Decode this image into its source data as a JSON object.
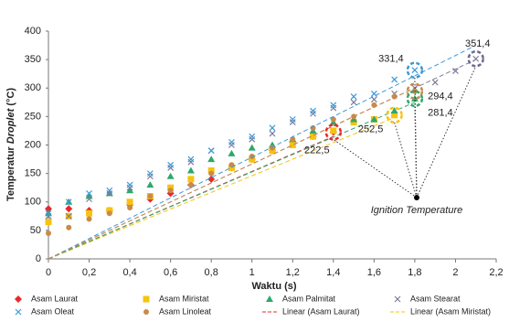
{
  "chart_data": {
    "type": "scatter",
    "x_label": "Waktu (s)",
    "y_label": {
      "before": "Temperatur",
      "italic": "Droplet",
      "after": "(°C)"
    },
    "xlim": [
      0,
      2.2
    ],
    "xticks": [
      0,
      {
        "value": 0.2,
        "label": "0,2"
      },
      {
        "value": 0.4,
        "label": "0,4"
      },
      {
        "value": 0.6,
        "label": "0,6"
      },
      {
        "value": 0.8,
        "label": "0,8"
      },
      1,
      {
        "value": 1.2,
        "label": "1,2"
      },
      {
        "value": 1.4,
        "label": "1,4"
      },
      {
        "value": 1.6,
        "label": "1,6"
      },
      {
        "value": 1.8,
        "label": "1,8"
      },
      2,
      {
        "value": 2.2,
        "label": "2,2"
      }
    ],
    "ylim": [
      0,
      400
    ],
    "yticks": [
      0,
      50,
      100,
      150,
      200,
      250,
      300,
      350,
      400
    ],
    "grid": false,
    "series": [
      {
        "name": "Asam Laurat",
        "color": "#e8282b",
        "marker": "diamond",
        "x": [
          0,
          0.1,
          0.2,
          0.3,
          0.4,
          0.5,
          0.6,
          0.7,
          0.8,
          0.9,
          1.0,
          1.1,
          1.2,
          1.3,
          1.4
        ],
        "values": [
          88,
          88,
          85,
          85,
          95,
          105,
          115,
          130,
          140,
          160,
          175,
          190,
          205,
          215,
          222.5
        ]
      },
      {
        "name": "Asam Miristat",
        "color": "#f7c30e",
        "marker": "square",
        "x": [
          0,
          0.1,
          0.2,
          0.3,
          0.4,
          0.5,
          0.6,
          0.7,
          0.8,
          0.9,
          1.0,
          1.1,
          1.2,
          1.3,
          1.4,
          1.5,
          1.6,
          1.7
        ],
        "values": [
          65,
          75,
          80,
          85,
          100,
          110,
          125,
          140,
          155,
          160,
          175,
          190,
          200,
          215,
          225,
          240,
          245,
          252.5
        ]
      },
      {
        "name": "Asam Palmitat",
        "color": "#2ea86a",
        "marker": "triangle",
        "x": [
          0,
          0.1,
          0.2,
          0.3,
          0.4,
          0.5,
          0.6,
          0.7,
          0.8,
          0.9,
          1.0,
          1.1,
          1.2,
          1.3,
          1.4,
          1.5,
          1.6,
          1.7,
          1.8
        ],
        "values": [
          80,
          100,
          110,
          115,
          120,
          130,
          145,
          155,
          175,
          185,
          195,
          200,
          210,
          225,
          240,
          245,
          245,
          260,
          281.4
        ]
      },
      {
        "name": "Asam Stearat",
        "color": "#7b7b9a",
        "marker": "x",
        "x": [
          0,
          0.1,
          0.2,
          0.3,
          0.4,
          0.5,
          0.6,
          0.7,
          0.8,
          0.9,
          1.0,
          1.1,
          1.2,
          1.3,
          1.4,
          1.5,
          1.6,
          1.7,
          1.8,
          1.9,
          2.0,
          2.1
        ],
        "values": [
          75,
          75,
          105,
          115,
          125,
          145,
          160,
          170,
          190,
          200,
          210,
          220,
          240,
          255,
          265,
          275,
          280,
          290,
          300,
          310,
          330,
          351.4
        ]
      },
      {
        "name": "Asam Oleat",
        "color": "#3a9ad8",
        "marker": "x",
        "x": [
          0,
          0.1,
          0.2,
          0.3,
          0.4,
          0.5,
          0.6,
          0.7,
          0.8,
          0.9,
          1.0,
          1.1,
          1.2,
          1.3,
          1.4,
          1.5,
          1.6,
          1.7,
          1.8
        ],
        "values": [
          80,
          100,
          115,
          120,
          130,
          150,
          165,
          175,
          190,
          205,
          215,
          230,
          245,
          260,
          270,
          285,
          290,
          315,
          331.4
        ]
      },
      {
        "name": "Asam Linoleat",
        "color": "#c98a4b",
        "marker": "circle",
        "x": [
          0,
          0.1,
          0.2,
          0.3,
          0.4,
          0.5,
          0.6,
          0.7,
          0.8,
          0.9,
          1.0,
          1.1,
          1.2,
          1.3,
          1.4,
          1.5,
          1.6,
          1.7,
          1.8
        ],
        "values": [
          45,
          55,
          70,
          80,
          90,
          110,
          120,
          130,
          150,
          165,
          180,
          195,
          210,
          230,
          245,
          250,
          270,
          285,
          294.4
        ]
      },
      {
        "name": "Linear (Asam Laurat)",
        "color": "#e8282b",
        "marker": "dash",
        "x": [
          0,
          1.4
        ],
        "values": [
          0,
          215
        ]
      },
      {
        "name": "Linear (Asam Miristat)",
        "color": "#f7c30e",
        "marker": "dash",
        "x": [
          0,
          1.7
        ],
        "values": [
          0,
          248
        ]
      },
      {
        "color": "#2ea86a",
        "marker": "dash",
        "x": [
          0,
          1.8
        ],
        "values": [
          0,
          275
        ]
      },
      {
        "color": "#7b7b9a",
        "marker": "dash",
        "x": [
          0,
          2.1
        ],
        "values": [
          0,
          350
        ]
      },
      {
        "color": "#3a9ad8",
        "marker": "dash",
        "x": [
          0,
          2.1
        ],
        "values": [
          0,
          375
        ]
      },
      {
        "color": "#c98a4b",
        "marker": "dash",
        "x": [
          0,
          1.8
        ],
        "values": [
          0,
          300
        ]
      }
    ],
    "annotations": [
      {
        "text": "331,4",
        "x": 1.8,
        "value": 331.4,
        "color": "#3a9ad8"
      },
      {
        "text": "351,4",
        "x": 2.1,
        "value": 351.4,
        "color": "#6b6b90"
      },
      {
        "text": "294,4",
        "x": 1.8,
        "value": 294.4,
        "color": "#c98a4b"
      },
      {
        "text": "281,4",
        "x": 1.8,
        "value": 281.4,
        "color": "#2ea86a"
      },
      {
        "text": "252,5",
        "x": 1.7,
        "value": 252.5,
        "color": "#f7c30e"
      },
      {
        "text": "222,5",
        "x": 1.4,
        "value": 222.5,
        "color": "#e8282b"
      }
    ],
    "ignition_label": "Ignition Temperature"
  }
}
